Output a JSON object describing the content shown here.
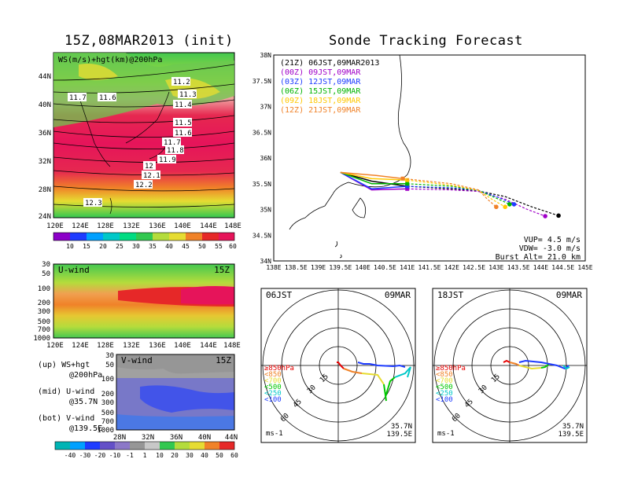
{
  "left_title": "15Z,08MAR2013 (init)",
  "right_title": "Sonde Tracking Forecast",
  "map_panel": {
    "overlay_label": "WS(m/s)+hgt(km)@200hPa",
    "x_ticks": [
      "120E",
      "124E",
      "128E",
      "132E",
      "136E",
      "140E",
      "144E",
      "148E"
    ],
    "y_ticks": [
      "44N",
      "40N",
      "36N",
      "32N",
      "28N",
      "24N"
    ],
    "contour_labels": [
      "11.2",
      "11.3",
      "11.4",
      "11.5",
      "11.6",
      "11.7",
      "11.8",
      "11.9",
      "12",
      "12.1",
      "12.2",
      "12.3",
      "11.7",
      "11.6"
    ],
    "colorbar_ticks": [
      "10",
      "15",
      "20",
      "25",
      "30",
      "35",
      "40",
      "45",
      "50",
      "55",
      "60"
    ]
  },
  "u_panel": {
    "label": "U-wind",
    "time": "15Z",
    "y_ticks": [
      "30",
      "50",
      "100",
      "200",
      "300",
      "500",
      "700",
      "1000"
    ],
    "x_ticks": [
      "120E",
      "124E",
      "128E",
      "132E",
      "136E",
      "140E",
      "144E",
      "148E"
    ]
  },
  "v_panel": {
    "label": "V-wind",
    "time": "15Z",
    "y_ticks": [
      "30",
      "50",
      "100",
      "200",
      "300",
      "500",
      "700",
      "1000"
    ],
    "x_ticks": [
      "28N",
      "32N",
      "36N",
      "40N",
      "44N"
    ],
    "colorbar_ticks": [
      "-40",
      "-30",
      "-20",
      "-10",
      "-1",
      "1",
      "10",
      "20",
      "30",
      "40",
      "50",
      "60"
    ]
  },
  "legend_notes": [
    {
      "a": "(up) WS+hgt",
      "b": "@200hPa"
    },
    {
      "a": "(mid) U-wind",
      "b": "@35.7N"
    },
    {
      "a": "(bot) V-wind",
      "b": "@139.5E"
    }
  ],
  "track_panel": {
    "y_ticks": [
      "38N",
      "37.5N",
      "37N",
      "36.5N",
      "36N",
      "35.5N",
      "35N",
      "34.5N",
      "34N"
    ],
    "x_ticks": [
      "138E",
      "138.5E",
      "139E",
      "139.5E",
      "140E",
      "140.5E",
      "141E",
      "141.5E",
      "142E",
      "142.5E",
      "143E",
      "143.5E",
      "144E",
      "144.5E",
      "145E"
    ],
    "legend": [
      {
        "text": "(21Z)  06JST,09MAR2013",
        "color": "#000000"
      },
      {
        "text": "(00Z)  09JST,09MAR",
        "color": "#a000c8"
      },
      {
        "text": "(03Z)  12JST,09MAR",
        "color": "#1e3cff"
      },
      {
        "text": "(06Z)  15JST,09MAR",
        "color": "#00b400"
      },
      {
        "text": "(09Z)  18JST,09MAR",
        "color": "#ffc800"
      },
      {
        "text": "(12Z)  21JST,09MAR",
        "color": "#f08228"
      }
    ],
    "info": [
      "VUP= 4.5 m/s",
      "VDW= -3.0 m/s",
      "Burst Alt= 21.0 km"
    ]
  },
  "hodographs": [
    {
      "time": "06JST",
      "date": "09MAR",
      "units": "ms-1",
      "loc1": "35.7N",
      "loc2": "139.5E",
      "rings": [
        "15",
        "30",
        "45",
        "60"
      ],
      "levels": [
        {
          "t": "≥850hPa",
          "c": "#e60000"
        },
        {
          "t": "<850",
          "c": "#f08228"
        },
        {
          "t": "<700",
          "c": "#e6dc32"
        },
        {
          "t": "<500",
          "c": "#00c800"
        },
        {
          "t": "<250",
          "c": "#00c8c8"
        },
        {
          "t": "<100",
          "c": "#1e3cff"
        }
      ]
    },
    {
      "time": "18JST",
      "date": "09MAR",
      "units": "ms-1",
      "loc1": "35.7N",
      "loc2": "139.5E",
      "rings": [
        "15",
        "30",
        "45",
        "60"
      ],
      "levels": [
        {
          "t": "≥850hPa",
          "c": "#e60000"
        },
        {
          "t": "<850",
          "c": "#f08228"
        },
        {
          "t": "<700",
          "c": "#e6dc32"
        },
        {
          "t": "<500",
          "c": "#00c800"
        },
        {
          "t": "<250",
          "c": "#00c8c8"
        },
        {
          "t": "<100",
          "c": "#1e3cff"
        }
      ]
    }
  ],
  "chart_data": [
    {
      "type": "line",
      "title": "Sonde Tracking Forecast",
      "xlabel": "",
      "ylabel": "",
      "xlim": [
        138,
        145
      ],
      "ylim": [
        34,
        38
      ],
      "series": [
        {
          "name": "(21Z)  06JST,09MAR2013",
          "x": [
            139.5,
            140.2,
            141.0,
            142.0,
            142.6,
            143.2,
            143.8,
            144.4
          ],
          "y": [
            35.72,
            35.55,
            35.45,
            35.4,
            35.36,
            35.25,
            35.05,
            34.88
          ]
        },
        {
          "name": "(00Z)  09JST,09MAR",
          "x": [
            139.5,
            140.2,
            141.0,
            142.0,
            142.6,
            143.2,
            143.7,
            144.1
          ],
          "y": [
            35.72,
            35.38,
            35.4,
            35.38,
            35.35,
            35.2,
            35.0,
            34.87
          ]
        },
        {
          "name": "(03Z)  12JST,09MAR",
          "x": [
            139.5,
            140.2,
            141.0,
            142.0,
            142.6,
            143.0,
            143.4
          ],
          "y": [
            35.72,
            35.4,
            35.45,
            35.42,
            35.37,
            35.25,
            35.1
          ]
        },
        {
          "name": "(06Z)  15JST,09MAR",
          "x": [
            139.5,
            140.2,
            141.0,
            142.0,
            142.6,
            143.0,
            143.3
          ],
          "y": [
            35.72,
            35.5,
            35.5,
            35.45,
            35.37,
            35.22,
            35.1
          ]
        },
        {
          "name": "(09Z)  18JST,09MAR",
          "x": [
            139.5,
            140.2,
            141.0,
            142.0,
            142.6,
            142.9,
            143.2
          ],
          "y": [
            35.72,
            35.6,
            35.57,
            35.47,
            35.37,
            35.2,
            35.05
          ]
        },
        {
          "name": "(12Z)  21JST,09MAR",
          "x": [
            139.5,
            140.3,
            140.9,
            142.0,
            142.6,
            142.8,
            143.0
          ],
          "y": [
            35.72,
            35.66,
            35.6,
            35.5,
            35.38,
            35.2,
            35.05
          ]
        }
      ]
    }
  ]
}
